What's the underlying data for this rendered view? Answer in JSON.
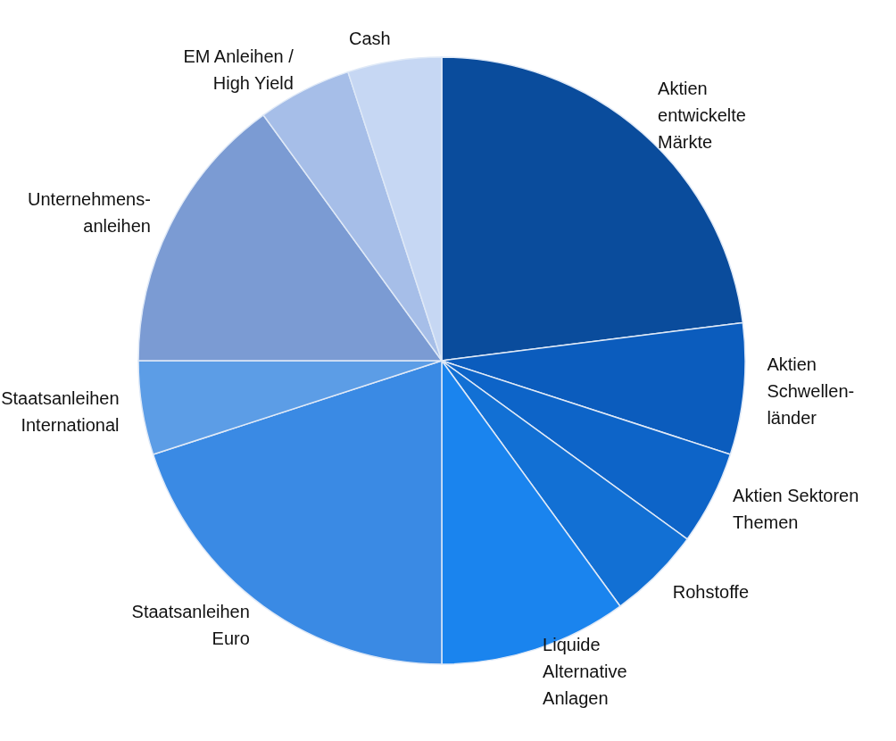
{
  "chart_data": {
    "type": "pie",
    "categories": [
      "Aktien\nentwickelte\nMärkte",
      "Aktien\nSchwellen-\nländer",
      "Aktien Sektoren\nThemen",
      "Rohstoffe",
      "Liquide\nAlternative\nAnlagen",
      "Staatsanleihen\nEuro",
      "Staatsanleihen\nInternational",
      "Unternehmens-\nanleihen",
      "EM Anleihen /\nHigh Yield",
      "Cash"
    ],
    "values": [
      23,
      7,
      5,
      5,
      10,
      20,
      5,
      15,
      5,
      5
    ],
    "colors": [
      "#0a4c9c",
      "#0b5cbd",
      "#0d64c8",
      "#1270d4",
      "#1a84ee",
      "#3a8ae4",
      "#5c9de6",
      "#7b9bd3",
      "#a6bee8",
      "#c6d7f3"
    ]
  }
}
